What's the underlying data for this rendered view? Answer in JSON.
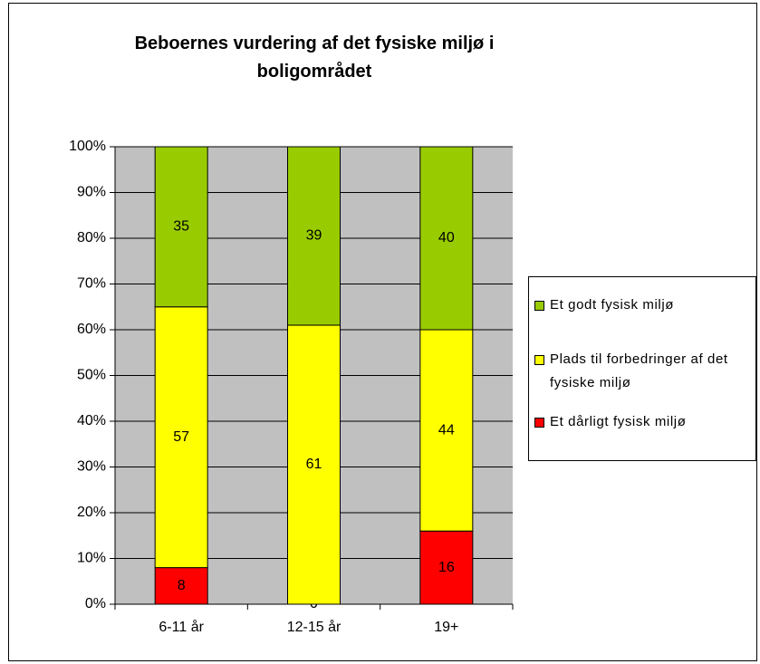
{
  "chart_data": {
    "type": "stacked_bar",
    "title": "Beboernes vurdering af det fysiske miljø i boligområdet",
    "categories": [
      "6-11 år",
      "12-15 år",
      "19+"
    ],
    "series": [
      {
        "name": "Et dårligt fysisk miljø",
        "color": "#ff0000",
        "values": [
          8,
          0,
          16
        ]
      },
      {
        "name": "Plads til forbedringer af det fysiske miljø",
        "color": "#ffff00",
        "values": [
          57,
          61,
          44
        ]
      },
      {
        "name": "Et godt fysisk miljø",
        "color": "#99cc00",
        "values": [
          35,
          39,
          40
        ]
      }
    ],
    "ylim": [
      0,
      100
    ],
    "yticks": [
      {
        "value": 0,
        "label": "0%"
      },
      {
        "value": 10,
        "label": "10%"
      },
      {
        "value": 20,
        "label": "20%"
      },
      {
        "value": 30,
        "label": "30%"
      },
      {
        "value": 40,
        "label": "40%"
      },
      {
        "value": 50,
        "label": "50%"
      },
      {
        "value": 60,
        "label": "60%"
      },
      {
        "value": 70,
        "label": "70%"
      },
      {
        "value": 80,
        "label": "80%"
      },
      {
        "value": 90,
        "label": "90%"
      },
      {
        "value": 100,
        "label": "100%"
      }
    ],
    "grid": true,
    "plot_background": "#c0c0c0",
    "legend": "right"
  }
}
